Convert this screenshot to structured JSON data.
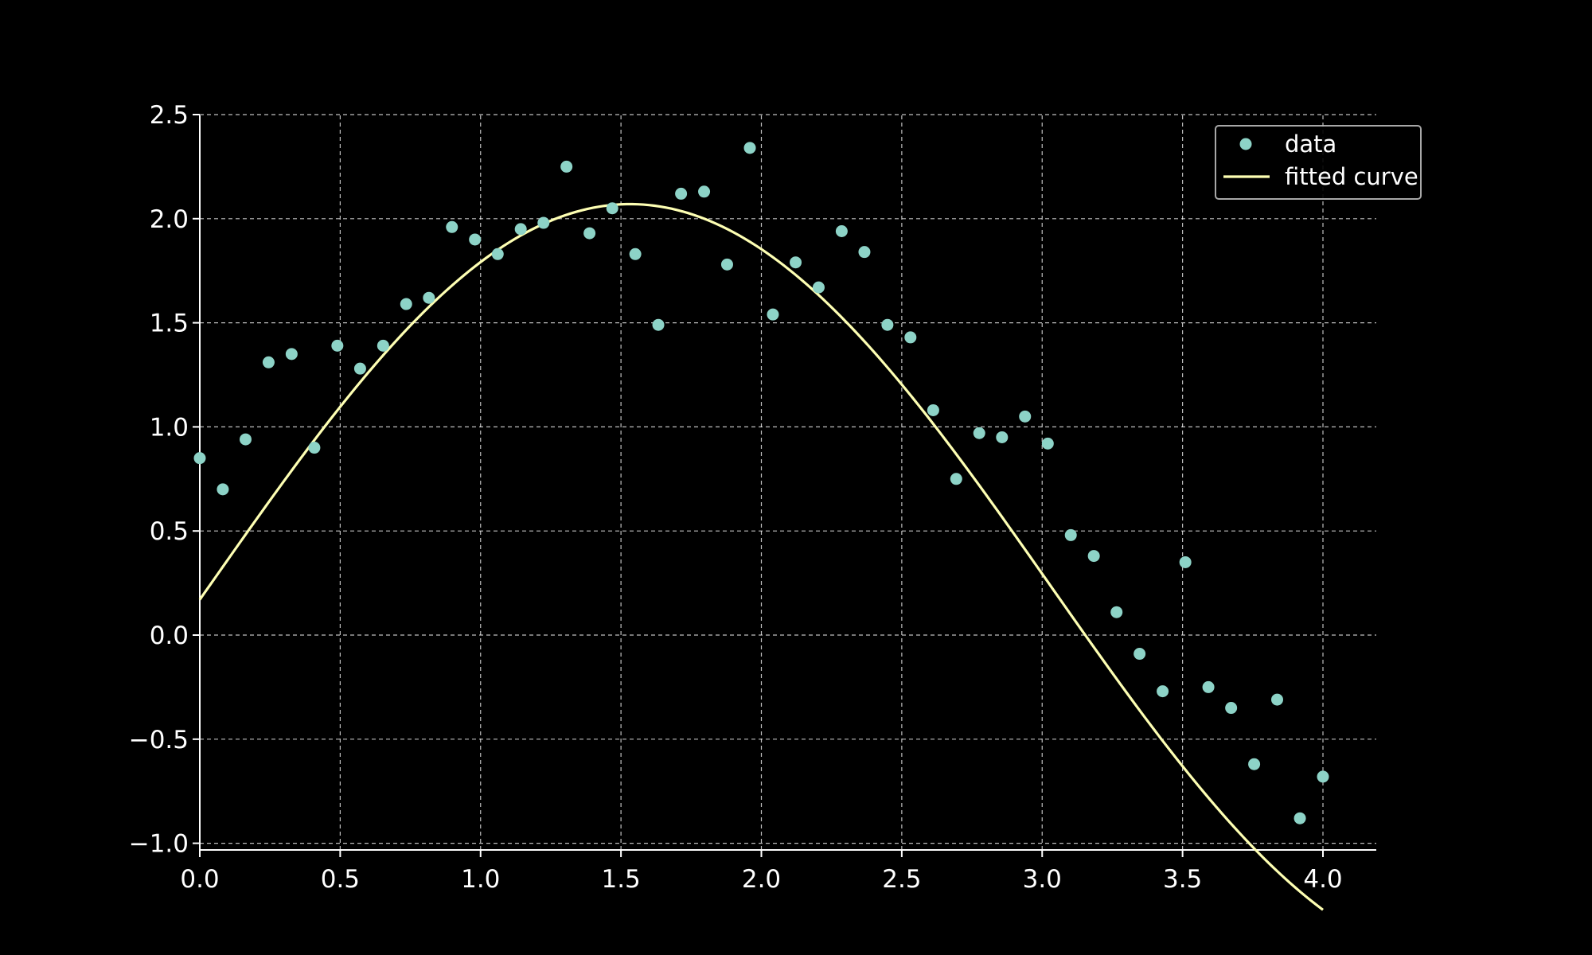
{
  "chart_data": {
    "type": "scatter",
    "title": "",
    "xlabel": "",
    "ylabel": "",
    "xlim": [
      -0.2,
      4.2
    ],
    "ylim": [
      -1.05,
      2.5
    ],
    "xticks": [
      "0.0",
      "0.5",
      "1.0",
      "1.5",
      "2.0",
      "2.5",
      "3.0",
      "3.5",
      "4.0"
    ],
    "yticks": [
      "−1.0",
      "−0.5",
      "0.0",
      "0.5",
      "1.0",
      "1.5",
      "2.0",
      "2.5"
    ],
    "xtick_values": [
      0,
      0.5,
      1,
      1.5,
      2,
      2.5,
      3,
      3.5,
      4
    ],
    "ytick_values": [
      -1,
      -0.5,
      0,
      0.5,
      1,
      1.5,
      2,
      2.5
    ],
    "grid": true,
    "legend_position": "top-right",
    "colors": {
      "background": "#000000",
      "data": "#8dd3c7",
      "fit": "#feffb3",
      "grid": "#ffffff",
      "axes": "#ffffff"
    },
    "series": [
      {
        "name": "data",
        "kind": "scatter",
        "x": [
          0.0,
          0.082,
          0.163,
          0.245,
          0.327,
          0.408,
          0.49,
          0.571,
          0.653,
          0.735,
          0.816,
          0.898,
          0.98,
          1.061,
          1.143,
          1.224,
          1.306,
          1.388,
          1.469,
          1.551,
          1.633,
          1.714,
          1.796,
          1.878,
          1.959,
          2.041,
          2.122,
          2.204,
          2.286,
          2.367,
          2.449,
          2.531,
          2.612,
          2.694,
          2.776,
          2.857,
          2.939,
          3.02,
          3.102,
          3.184,
          3.265,
          3.347,
          3.429,
          3.51,
          3.592,
          3.673,
          3.755,
          3.837,
          3.918,
          4.0
        ],
        "y": [
          0.85,
          0.7,
          0.94,
          1.31,
          1.35,
          0.9,
          1.39,
          1.28,
          1.39,
          1.59,
          1.62,
          1.96,
          1.9,
          1.83,
          1.95,
          1.98,
          2.25,
          1.93,
          2.05,
          1.83,
          1.49,
          2.12,
          2.13,
          1.78,
          2.34,
          1.54,
          1.79,
          1.67,
          1.94,
          1.84,
          1.49,
          1.43,
          1.08,
          0.75,
          0.97,
          0.95,
          1.05,
          0.92,
          0.48,
          0.38,
          0.11,
          -0.09,
          -0.27,
          0.35,
          -0.25,
          -0.35,
          -0.62,
          -0.31,
          -0.88,
          -0.68
        ]
      },
      {
        "name": "fitted curve",
        "kind": "line",
        "model": {
          "amplitude": 1.83,
          "frequency": 1.05,
          "phase": -0.038,
          "offset": 0.24
        }
      }
    ]
  }
}
